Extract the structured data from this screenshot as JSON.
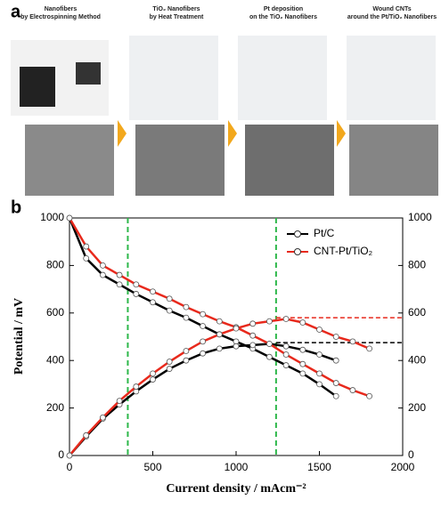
{
  "panel_a": {
    "label": "a",
    "steps": [
      {
        "title": [
          "Nanofibers",
          "by Electrospinning Method"
        ]
      },
      {
        "title": [
          "TiO₂ Nanofibers",
          "by Heat Treatment"
        ]
      },
      {
        "title": [
          "Pt deposition",
          "on the TiO₂ Nanofibers"
        ]
      },
      {
        "title": [
          "Wound CNTs",
          "around the Pt/TiO₂ Nanofibers"
        ]
      }
    ]
  },
  "chart_data": {
    "type": "line",
    "panel_label": "b",
    "x_label": "Current density / mAcm⁻²",
    "y_label": "Potential / mV",
    "x": [
      0,
      100,
      200,
      300,
      400,
      500,
      600,
      700,
      800,
      900,
      1000,
      1100,
      1200,
      1300,
      1400,
      1500,
      1600,
      1700,
      1800
    ],
    "series": [
      {
        "name": "Pt/C",
        "color": "#000000",
        "values": [
          1000,
          830,
          760,
          720,
          680,
          645,
          610,
          580,
          545,
          510,
          480,
          450,
          415,
          380,
          345,
          300,
          250,
          null,
          null
        ],
        "power_values": [
          0,
          80,
          155,
          215,
          270,
          320,
          365,
          400,
          430,
          450,
          460,
          465,
          470,
          460,
          445,
          425,
          400,
          null,
          null
        ]
      },
      {
        "name": "CNT-Pt/TiO₂",
        "color": "#e8291c",
        "values": [
          1000,
          880,
          800,
          760,
          720,
          690,
          660,
          625,
          595,
          565,
          540,
          505,
          470,
          425,
          385,
          345,
          305,
          275,
          250
        ],
        "power_values": [
          0,
          85,
          160,
          230,
          290,
          345,
          395,
          440,
          480,
          510,
          535,
          555,
          565,
          575,
          560,
          530,
          500,
          480,
          450
        ]
      }
    ],
    "vlines": [
      350,
      1240
    ],
    "hlines": [
      475,
      580
    ],
    "xlim": [
      0,
      2000
    ],
    "xticks": [
      0,
      500,
      1000,
      1500,
      2000
    ],
    "ylim": [
      0,
      1000
    ],
    "yticks": [
      0,
      200,
      400,
      600,
      800,
      1000
    ],
    "y2lim": [
      0,
      1000
    ],
    "y2ticks": [
      0,
      200,
      400,
      600,
      800,
      1000
    ],
    "legend": "upper-right"
  }
}
